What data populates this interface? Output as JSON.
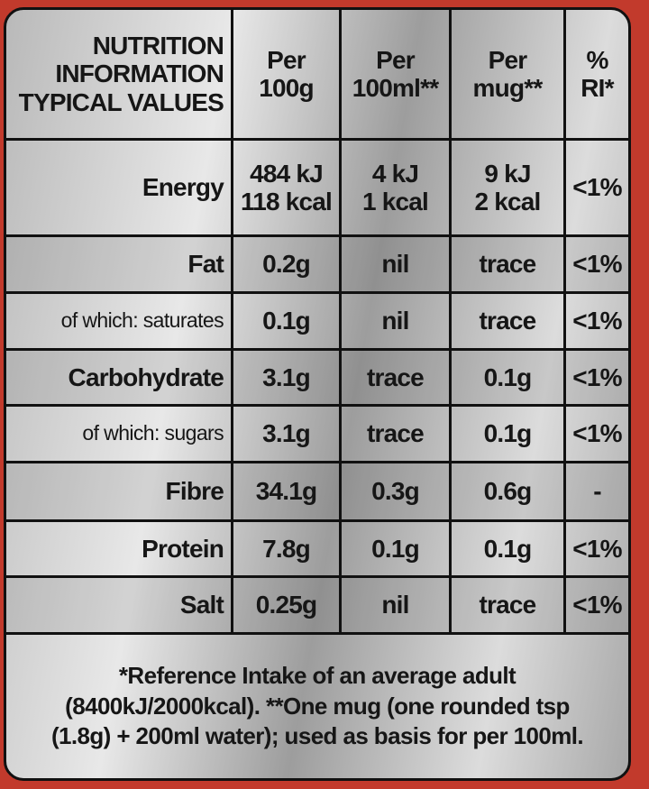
{
  "table": {
    "header": [
      [
        "NUTRITION",
        "INFORMATION",
        "TYPICAL VALUES"
      ],
      [
        "Per",
        "100g"
      ],
      [
        "Per",
        "100ml**"
      ],
      [
        "Per",
        "mug**"
      ],
      [
        "%",
        "RI*"
      ]
    ],
    "rows": [
      [
        "Energy",
        [
          "484 kJ",
          "118 kcal"
        ],
        [
          "4 kJ",
          "1 kcal"
        ],
        [
          "9 kJ",
          "2 kcal"
        ],
        "<1%"
      ],
      [
        "Fat",
        "0.2g",
        "nil",
        "trace",
        "<1%"
      ],
      [
        "of which: saturates",
        "0.1g",
        "nil",
        "trace",
        "<1%"
      ],
      [
        "Carbohydrate",
        "3.1g",
        "trace",
        "0.1g",
        "<1%"
      ],
      [
        "of which: sugars",
        "3.1g",
        "trace",
        "0.1g",
        "<1%"
      ],
      [
        "Fibre",
        "34.1g",
        "0.3g",
        "0.6g",
        "-"
      ],
      [
        "Protein",
        "7.8g",
        "0.1g",
        "0.1g",
        "<1%"
      ],
      [
        "Salt",
        "0.25g",
        "nil",
        "trace",
        "<1%"
      ]
    ],
    "footnote": [
      "*Reference Intake of an average adult",
      "(8400kJ/2000kcal). **One mug (one rounded tsp",
      "(1.8g) + 200ml water); used as basis for per 100ml."
    ]
  }
}
